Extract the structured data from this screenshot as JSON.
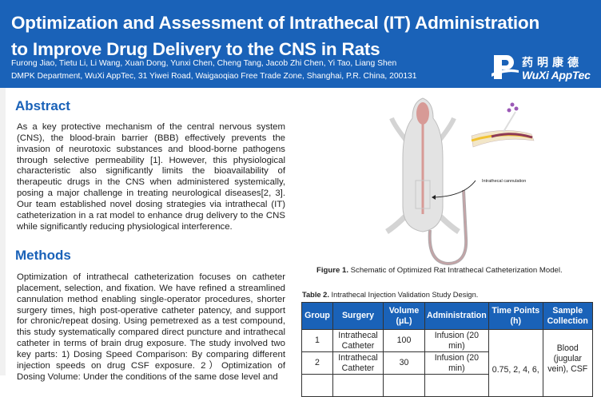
{
  "header": {
    "title_line1": "Optimization and Assessment of Intrathecal (IT) Administration",
    "title_line2": "to Improve Drug Delivery to the CNS in Rats",
    "authors": "Furong Jiao, Tietu Li, Li Wang, Xuan Dong, Yunxi Chen, Cheng Tang, Jacob Zhi Chen, Yi Tao, Liang Shen",
    "affiliation": "DMPK Department, WuXi AppTec, 31 Yiwei Road, Waigaoqiao Free Trade Zone, Shanghai, P.R. China, 200131",
    "logo_cn": "药明康德",
    "logo_en": "WuXi AppTec"
  },
  "abstract": {
    "heading": "Abstract",
    "text": "As a key protective mechanism of the central nervous system (CNS), the blood-brain barrier (BBB) effectively prevents the invasion of neurotoxic substances and blood-borne pathogens through selective permeability [1]. However, this physiological characteristic also significantly limits the bioavailability of therapeutic drugs in the CNS when administered systemically, posing a major challenge in treating neurological diseases[2, 3]. Our team established novel dosing strategies via intrathecal (IT) catheterization in a rat model to enhance drug delivery to the CNS while significantly reducing physiological interference."
  },
  "methods": {
    "heading": "Methods",
    "text": "Optimization of intrathecal catheterization focuses on catheter placement, selection, and fixation. We have refined a streamlined cannulation method enabling single-operator procedures, shorter surgery times, high post-operative catheter patency, and support for chronic/repeat dosing. Using pemetrexed as a test compound, this study systematically compared direct puncture and intrathecal catheter in terms of brain drug exposure. The study involved two key parts: 1) Dosing Speed Comparison: By comparing different injection speeds on drug CSF exposure. 2）Optimization of Dosing Volume: Under the conditions of the same dose level and"
  },
  "figure1": {
    "label": "Intrathecal cannulation",
    "caption_label": "Figure 1.",
    "caption_text": " Schematic of Optimized Rat Intrathecal Catheterization Model."
  },
  "table2": {
    "caption_label": "Table 2.",
    "caption_text": " Intrathecal Injection Validation Study Design.",
    "columns": [
      "Group",
      "Surgery",
      "Volume (μL)",
      "Administration",
      "Time Points (h)",
      "Sample Collection"
    ],
    "rows": [
      {
        "group": "1",
        "surgery": "Intrathecal Catheter",
        "volume": "100",
        "administration": "Infusion (20 min)"
      },
      {
        "group": "2",
        "surgery": "Intrathecal Catheter",
        "volume": "30",
        "administration": "Infusion (20 min)"
      }
    ],
    "time_points": "0.75, 2, 4, 6,",
    "sample_collection": "Blood (jugular vein), CSF"
  },
  "colors": {
    "brand_blue": "#1a62b8"
  }
}
